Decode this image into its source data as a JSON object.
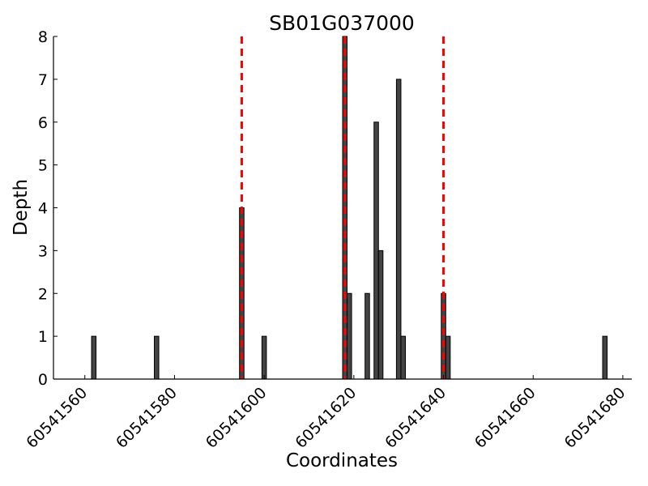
{
  "chart_data": {
    "type": "bar",
    "title": "SB01G037000",
    "xlabel": "Coordinates",
    "ylabel": "Depth",
    "xlim": [
      60541553,
      60541682
    ],
    "ylim": [
      0,
      8
    ],
    "xticks": [
      60541560,
      60541580,
      60541600,
      60541620,
      60541640,
      60541660,
      60541680
    ],
    "xtick_labels": [
      "60541560",
      "60541580",
      "60541600",
      "60541620",
      "60541640",
      "60541660",
      "60541680"
    ],
    "yticks": [
      0,
      1,
      2,
      3,
      4,
      5,
      6,
      7,
      8
    ],
    "ytick_labels": [
      "0",
      "1",
      "2",
      "3",
      "4",
      "5",
      "6",
      "7",
      "8"
    ],
    "bar_color": "#444444",
    "bars": [
      {
        "x": 60541562,
        "value": 1
      },
      {
        "x": 60541576,
        "value": 1
      },
      {
        "x": 60541595,
        "value": 4
      },
      {
        "x": 60541600,
        "value": 1
      },
      {
        "x": 60541618,
        "value": 8
      },
      {
        "x": 60541619,
        "value": 2
      },
      {
        "x": 60541623,
        "value": 2
      },
      {
        "x": 60541625,
        "value": 6
      },
      {
        "x": 60541626,
        "value": 3
      },
      {
        "x": 60541630,
        "value": 7
      },
      {
        "x": 60541631,
        "value": 1
      },
      {
        "x": 60541640,
        "value": 2
      },
      {
        "x": 60541641,
        "value": 1
      },
      {
        "x": 60541676,
        "value": 1
      }
    ],
    "vlines": {
      "color": "#ff0000",
      "style": "dashed",
      "x": [
        60541595,
        60541618,
        60541640
      ]
    },
    "grid": false,
    "legend": "none"
  }
}
